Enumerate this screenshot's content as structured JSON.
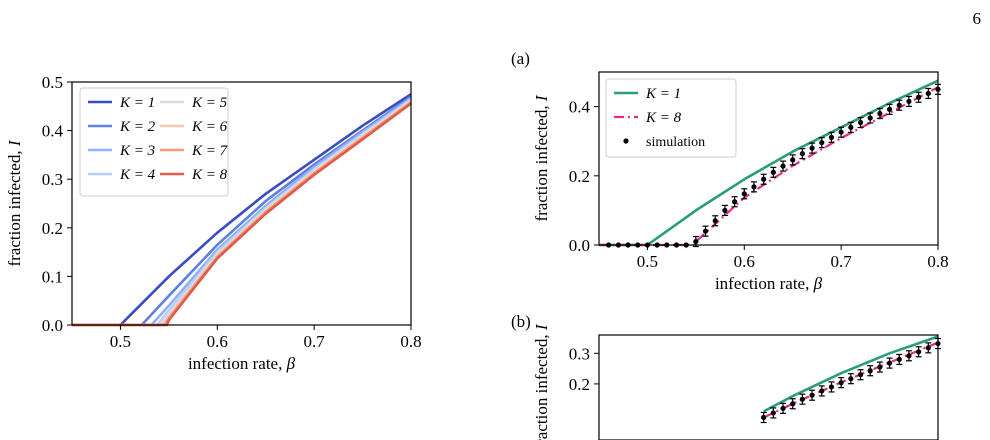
{
  "page_number": "6",
  "chart_data": [
    {
      "type": "line",
      "id": "left",
      "panel_label": "",
      "xlabel": "infection rate, β",
      "ylabel": "fraction infected, I",
      "xlim": [
        0.45,
        0.8
      ],
      "ylim": [
        0.0,
        0.5
      ],
      "xticks": [
        "0.5",
        "0.6",
        "0.7",
        "0.8"
      ],
      "yticks": [
        "0.0",
        "0.1",
        "0.2",
        "0.3",
        "0.4",
        "0.5"
      ],
      "legend_position": "upper-left",
      "series": [
        {
          "name": "K = 1",
          "color": "#3b4cc0",
          "x": [
            0.45,
            0.5,
            0.55,
            0.6,
            0.65,
            0.7,
            0.75,
            0.8
          ],
          "y": [
            0.0,
            0.0,
            0.1,
            0.19,
            0.27,
            0.34,
            0.41,
            0.475
          ]
        },
        {
          "name": "K = 2",
          "color": "#5f7fe2",
          "x": [
            0.45,
            0.522,
            0.55,
            0.6,
            0.65,
            0.7,
            0.75,
            0.8
          ],
          "y": [
            0.0,
            0.0,
            0.06,
            0.165,
            0.255,
            0.33,
            0.4,
            0.47
          ]
        },
        {
          "name": "K = 3",
          "color": "#8db0fe",
          "x": [
            0.45,
            0.532,
            0.55,
            0.6,
            0.65,
            0.7,
            0.75,
            0.8
          ],
          "y": [
            0.0,
            0.0,
            0.04,
            0.155,
            0.245,
            0.325,
            0.397,
            0.467
          ]
        },
        {
          "name": "K = 4",
          "color": "#b8d0f9",
          "x": [
            0.45,
            0.538,
            0.55,
            0.6,
            0.65,
            0.7,
            0.75,
            0.8
          ],
          "y": [
            0.0,
            0.0,
            0.03,
            0.15,
            0.24,
            0.32,
            0.393,
            0.464
          ]
        },
        {
          "name": "K = 5",
          "color": "#dddddd",
          "x": [
            0.45,
            0.542,
            0.55,
            0.6,
            0.65,
            0.7,
            0.75,
            0.8
          ],
          "y": [
            0.0,
            0.0,
            0.022,
            0.145,
            0.237,
            0.317,
            0.39,
            0.462
          ]
        },
        {
          "name": "K = 6",
          "color": "#f2c8b4",
          "x": [
            0.45,
            0.544,
            0.55,
            0.6,
            0.65,
            0.7,
            0.75,
            0.8
          ],
          "y": [
            0.0,
            0.0,
            0.018,
            0.142,
            0.234,
            0.314,
            0.387,
            0.46
          ]
        },
        {
          "name": "K = 7",
          "color": "#f49a7b",
          "x": [
            0.45,
            0.546,
            0.55,
            0.6,
            0.65,
            0.7,
            0.75,
            0.8
          ],
          "y": [
            0.0,
            0.0,
            0.014,
            0.14,
            0.232,
            0.312,
            0.385,
            0.458
          ]
        },
        {
          "name": "K = 8",
          "color": "#dd5c4a",
          "x": [
            0.45,
            0.548,
            0.55,
            0.6,
            0.65,
            0.7,
            0.75,
            0.8
          ],
          "y": [
            0.0,
            0.0,
            0.01,
            0.137,
            0.229,
            0.309,
            0.382,
            0.456
          ]
        }
      ]
    },
    {
      "type": "line",
      "id": "a",
      "panel_label": "(a)",
      "xlabel": "infection rate, β",
      "ylabel": "fraction infected, I",
      "xlim": [
        0.45,
        0.8
      ],
      "ylim": [
        0.0,
        0.5
      ],
      "xticks": [
        "0.5",
        "0.6",
        "0.7",
        "0.8"
      ],
      "yticks": [
        "0.0",
        "0.2",
        "0.4"
      ],
      "legend_position": "upper-left",
      "series": [
        {
          "name": "K = 1",
          "color": "#2a9d78",
          "style": "solid",
          "x": [
            0.45,
            0.5,
            0.55,
            0.6,
            0.65,
            0.7,
            0.75,
            0.8
          ],
          "y": [
            0.0,
            0.0,
            0.1,
            0.19,
            0.27,
            0.34,
            0.41,
            0.475
          ]
        },
        {
          "name": "K = 8",
          "color": "#e7298a",
          "style": "dashdot",
          "x": [
            0.45,
            0.548,
            0.55,
            0.6,
            0.65,
            0.7,
            0.75,
            0.8
          ],
          "y": [
            0.0,
            0.0,
            0.01,
            0.137,
            0.229,
            0.309,
            0.382,
            0.456
          ]
        },
        {
          "name": "simulation",
          "color": "#000000",
          "style": "points",
          "x": [
            0.46,
            0.47,
            0.48,
            0.49,
            0.5,
            0.51,
            0.52,
            0.53,
            0.54,
            0.55,
            0.56,
            0.57,
            0.58,
            0.59,
            0.6,
            0.61,
            0.62,
            0.63,
            0.64,
            0.65,
            0.66,
            0.67,
            0.68,
            0.69,
            0.7,
            0.71,
            0.72,
            0.73,
            0.74,
            0.75,
            0.76,
            0.77,
            0.78,
            0.79,
            0.8
          ],
          "y": [
            0.0,
            0.0,
            0.0,
            0.0,
            0.0,
            0.0,
            0.0,
            0.0,
            0.0,
            0.01,
            0.04,
            0.07,
            0.1,
            0.125,
            0.148,
            0.168,
            0.19,
            0.21,
            0.228,
            0.246,
            0.264,
            0.28,
            0.296,
            0.311,
            0.326,
            0.34,
            0.354,
            0.367,
            0.38,
            0.392,
            0.404,
            0.415,
            0.427,
            0.438,
            0.45
          ]
        }
      ]
    },
    {
      "type": "line",
      "id": "b",
      "panel_label": "(b)",
      "xlabel": "",
      "ylabel": "fraction infected, I",
      "xlim": [
        0.45,
        0.8
      ],
      "ylim": [
        0.0,
        0.36
      ],
      "xticks": [],
      "yticks": [
        "0.2",
        "0.3"
      ],
      "series": [
        {
          "name": "K = 1",
          "color": "#2a9d78",
          "style": "solid",
          "x": [
            0.62,
            0.65,
            0.7,
            0.75,
            0.8
          ],
          "y": [
            0.11,
            0.16,
            0.235,
            0.3,
            0.355
          ]
        },
        {
          "name": "K = 8",
          "color": "#e7298a",
          "style": "dashdot",
          "x": [
            0.62,
            0.65,
            0.7,
            0.75,
            0.8
          ],
          "y": [
            0.09,
            0.135,
            0.205,
            0.27,
            0.335
          ]
        },
        {
          "name": "simulation",
          "color": "#000000",
          "style": "points",
          "x": [
            0.62,
            0.63,
            0.64,
            0.65,
            0.66,
            0.67,
            0.68,
            0.69,
            0.7,
            0.71,
            0.72,
            0.73,
            0.74,
            0.75,
            0.76,
            0.77,
            0.78,
            0.79,
            0.8
          ],
          "y": [
            0.09,
            0.105,
            0.12,
            0.135,
            0.15,
            0.163,
            0.177,
            0.19,
            0.204,
            0.217,
            0.23,
            0.243,
            0.255,
            0.268,
            0.28,
            0.292,
            0.305,
            0.318,
            0.332
          ]
        }
      ]
    }
  ]
}
